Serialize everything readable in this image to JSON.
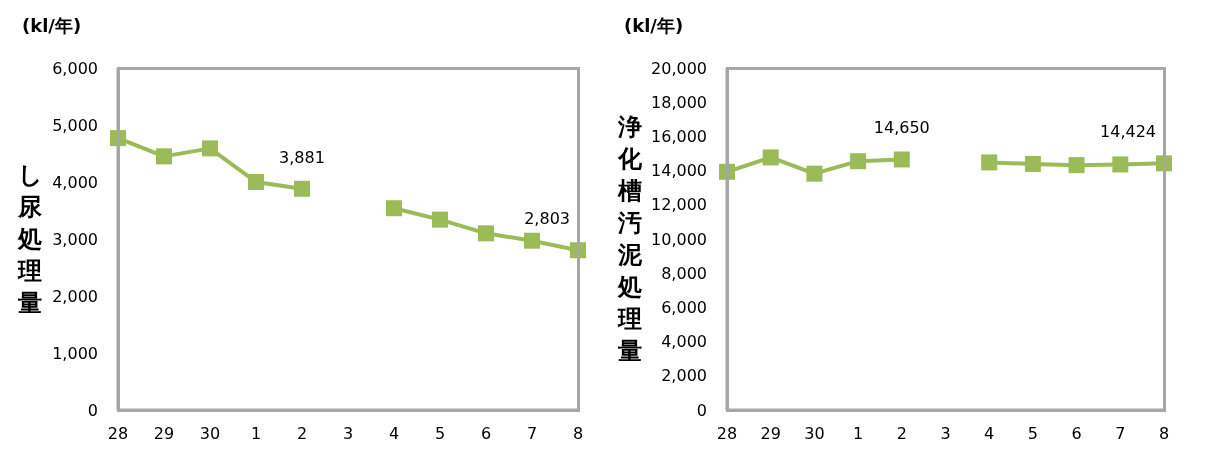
{
  "chart_data": [
    {
      "type": "line",
      "ylabel": "し尿処理量",
      "annotations": [
        "(kl/年)"
      ],
      "categories": [
        "28",
        "29",
        "30",
        "1",
        "2",
        "3",
        "4",
        "5",
        "6",
        "7",
        "8"
      ],
      "series": [
        {
          "color": "#9bbb59",
          "values": [
            4770,
            4450,
            4590,
            4000,
            3881,
            null,
            3540,
            3340,
            3100,
            2970,
            2803
          ],
          "value_labels": [
            null,
            null,
            null,
            null,
            "3,881",
            null,
            null,
            null,
            null,
            null,
            "2,803"
          ]
        }
      ],
      "ylim": [
        0,
        6000
      ],
      "yticks": [
        {
          "value": 0,
          "label": "0"
        },
        {
          "value": 1000,
          "label": "1,000"
        },
        {
          "value": 2000,
          "label": "2,000"
        },
        {
          "value": 3000,
          "label": "3,000"
        },
        {
          "value": 4000,
          "label": "4,000"
        },
        {
          "value": 5000,
          "label": "5,000"
        },
        {
          "value": 6000,
          "label": "6,000"
        }
      ],
      "grid": false,
      "legend": false,
      "marker": "square",
      "line_style": "solid"
    },
    {
      "type": "line",
      "ylabel": "浄化槽汚泥処理量",
      "annotations": [
        "(kl/年)"
      ],
      "categories": [
        "28",
        "29",
        "30",
        "1",
        "2",
        "3",
        "4",
        "5",
        "6",
        "7",
        "8"
      ],
      "series": [
        {
          "color": "#9bbb59",
          "values": [
            13930,
            14770,
            13820,
            14550,
            14650,
            null,
            14480,
            14390,
            14320,
            14360,
            14424
          ],
          "value_labels": [
            null,
            null,
            null,
            null,
            "14,650",
            null,
            null,
            null,
            null,
            null,
            "14,424"
          ]
        }
      ],
      "ylim": [
        0,
        20000
      ],
      "yticks": [
        {
          "value": 0,
          "label": "0"
        },
        {
          "value": 2000,
          "label": "2,000"
        },
        {
          "value": 4000,
          "label": "4,000"
        },
        {
          "value": 6000,
          "label": "6,000"
        },
        {
          "value": 8000,
          "label": "8,000"
        },
        {
          "value": 10000,
          "label": "10,000"
        },
        {
          "value": 12000,
          "label": "12,000"
        },
        {
          "value": 14000,
          "label": "14,000"
        },
        {
          "value": 16000,
          "label": "16,000"
        },
        {
          "value": 18000,
          "label": "18,000"
        },
        {
          "value": 20000,
          "label": "20,000"
        }
      ],
      "grid": false,
      "legend": false,
      "marker": "square",
      "line_style": "solid"
    }
  ]
}
